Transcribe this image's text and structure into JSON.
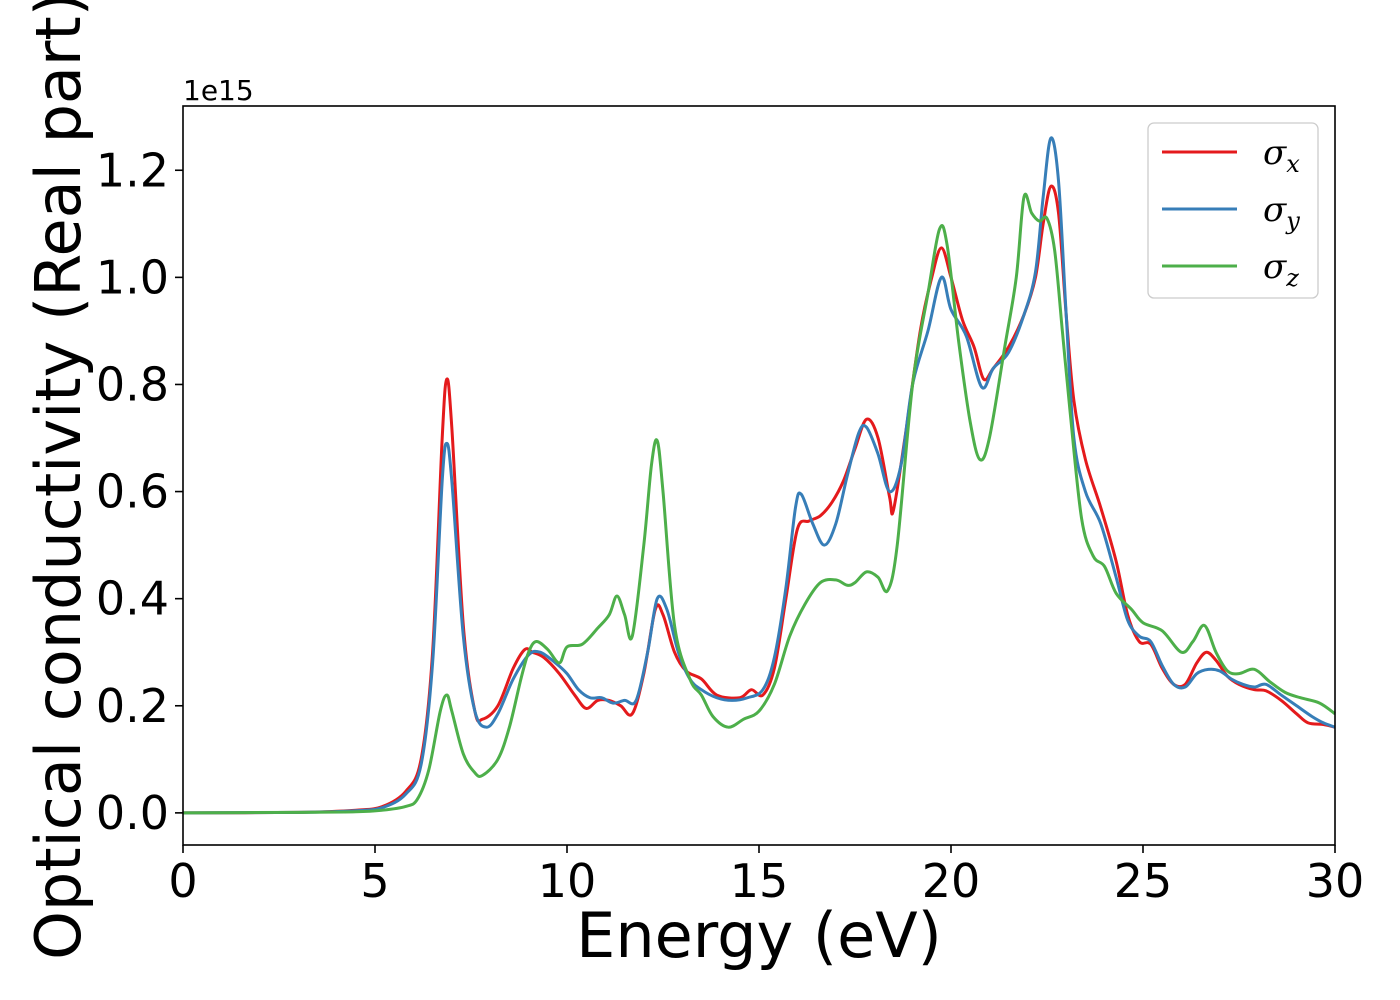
{
  "chart_data": {
    "type": "line",
    "xlabel": "Energy (eV)",
    "ylabel": "Optical conductivity (Real part)",
    "offset_text": "1e15",
    "xlim": [
      0,
      30
    ],
    "ylim": [
      -0.06,
      1.32
    ],
    "xticks": [
      0,
      5,
      10,
      15,
      20,
      25,
      30
    ],
    "xtick_labels": [
      "0",
      "5",
      "10",
      "15",
      "20",
      "25",
      "30"
    ],
    "yticks": [
      0.0,
      0.2,
      0.4,
      0.6,
      0.8,
      1.0,
      1.2
    ],
    "ytick_labels": [
      "0.0",
      "0.2",
      "0.4",
      "0.6",
      "0.8",
      "1.0",
      "1.2"
    ],
    "grid": false,
    "legend_position": "top-right",
    "series": [
      {
        "name": "σx",
        "legend_symbol": "σ",
        "legend_sub": "x",
        "color": "#e41a1c",
        "points": [
          [
            0,
            0
          ],
          [
            3,
            0.001
          ],
          [
            4.5,
            0.005
          ],
          [
            5.2,
            0.012
          ],
          [
            5.8,
            0.04
          ],
          [
            6.2,
            0.1
          ],
          [
            6.5,
            0.3
          ],
          [
            6.75,
            0.7
          ],
          [
            6.87,
            0.81
          ],
          [
            7.0,
            0.72
          ],
          [
            7.3,
            0.35
          ],
          [
            7.6,
            0.19
          ],
          [
            7.8,
            0.175
          ],
          [
            8.2,
            0.2
          ],
          [
            8.6,
            0.27
          ],
          [
            8.9,
            0.305
          ],
          [
            9.1,
            0.3
          ],
          [
            9.4,
            0.29
          ],
          [
            9.8,
            0.26
          ],
          [
            10.2,
            0.22
          ],
          [
            10.5,
            0.195
          ],
          [
            10.8,
            0.21
          ],
          [
            11.1,
            0.21
          ],
          [
            11.4,
            0.2
          ],
          [
            11.7,
            0.185
          ],
          [
            12.0,
            0.26
          ],
          [
            12.3,
            0.38
          ],
          [
            12.5,
            0.37
          ],
          [
            12.8,
            0.3
          ],
          [
            13.1,
            0.265
          ],
          [
            13.5,
            0.25
          ],
          [
            13.9,
            0.22
          ],
          [
            14.5,
            0.215
          ],
          [
            14.8,
            0.23
          ],
          [
            15.1,
            0.22
          ],
          [
            15.4,
            0.27
          ],
          [
            15.7,
            0.4
          ],
          [
            16.0,
            0.53
          ],
          [
            16.3,
            0.545
          ],
          [
            16.6,
            0.555
          ],
          [
            16.9,
            0.58
          ],
          [
            17.2,
            0.62
          ],
          [
            17.5,
            0.68
          ],
          [
            17.8,
            0.735
          ],
          [
            18.1,
            0.7
          ],
          [
            18.4,
            0.59
          ],
          [
            18.5,
            0.565
          ],
          [
            18.8,
            0.7
          ],
          [
            19.2,
            0.9
          ],
          [
            19.5,
            1.0
          ],
          [
            19.75,
            1.055
          ],
          [
            20.0,
            1.0
          ],
          [
            20.3,
            0.92
          ],
          [
            20.6,
            0.87
          ],
          [
            20.85,
            0.81
          ],
          [
            21.1,
            0.83
          ],
          [
            21.5,
            0.87
          ],
          [
            21.9,
            0.93
          ],
          [
            22.2,
            1.0
          ],
          [
            22.4,
            1.1
          ],
          [
            22.6,
            1.17
          ],
          [
            22.8,
            1.12
          ],
          [
            23.0,
            0.93
          ],
          [
            23.2,
            0.77
          ],
          [
            23.5,
            0.66
          ],
          [
            23.9,
            0.57
          ],
          [
            24.3,
            0.47
          ],
          [
            24.6,
            0.37
          ],
          [
            24.9,
            0.32
          ],
          [
            25.2,
            0.315
          ],
          [
            25.5,
            0.27
          ],
          [
            25.8,
            0.24
          ],
          [
            26.1,
            0.24
          ],
          [
            26.4,
            0.28
          ],
          [
            26.65,
            0.3
          ],
          [
            26.9,
            0.285
          ],
          [
            27.2,
            0.255
          ],
          [
            27.5,
            0.24
          ],
          [
            27.9,
            0.23
          ],
          [
            28.2,
            0.228
          ],
          [
            28.6,
            0.21
          ],
          [
            29.0,
            0.185
          ],
          [
            29.3,
            0.168
          ],
          [
            29.7,
            0.165
          ],
          [
            30.0,
            0.16
          ]
        ]
      },
      {
        "name": "σy",
        "legend_symbol": "σ",
        "legend_sub": "y",
        "color": "#377eb8",
        "points": [
          [
            0,
            0
          ],
          [
            3,
            0.001
          ],
          [
            4.5,
            0.004
          ],
          [
            5.2,
            0.01
          ],
          [
            5.8,
            0.035
          ],
          [
            6.2,
            0.09
          ],
          [
            6.5,
            0.28
          ],
          [
            6.75,
            0.62
          ],
          [
            6.87,
            0.69
          ],
          [
            7.0,
            0.62
          ],
          [
            7.3,
            0.33
          ],
          [
            7.6,
            0.19
          ],
          [
            7.9,
            0.16
          ],
          [
            8.2,
            0.185
          ],
          [
            8.6,
            0.25
          ],
          [
            9.0,
            0.295
          ],
          [
            9.3,
            0.3
          ],
          [
            9.7,
            0.28
          ],
          [
            10.0,
            0.26
          ],
          [
            10.3,
            0.23
          ],
          [
            10.6,
            0.215
          ],
          [
            10.9,
            0.215
          ],
          [
            11.2,
            0.205
          ],
          [
            11.5,
            0.21
          ],
          [
            11.8,
            0.21
          ],
          [
            12.1,
            0.3
          ],
          [
            12.35,
            0.4
          ],
          [
            12.6,
            0.38
          ],
          [
            12.9,
            0.3
          ],
          [
            13.2,
            0.25
          ],
          [
            13.5,
            0.23
          ],
          [
            13.9,
            0.215
          ],
          [
            14.3,
            0.21
          ],
          [
            14.7,
            0.215
          ],
          [
            15.1,
            0.23
          ],
          [
            15.4,
            0.29
          ],
          [
            15.7,
            0.42
          ],
          [
            15.95,
            0.57
          ],
          [
            16.1,
            0.595
          ],
          [
            16.4,
            0.54
          ],
          [
            16.7,
            0.5
          ],
          [
            17.0,
            0.54
          ],
          [
            17.3,
            0.63
          ],
          [
            17.6,
            0.71
          ],
          [
            17.8,
            0.72
          ],
          [
            18.1,
            0.67
          ],
          [
            18.4,
            0.6
          ],
          [
            18.7,
            0.65
          ],
          [
            19.0,
            0.8
          ],
          [
            19.4,
            0.9
          ],
          [
            19.75,
            1.0
          ],
          [
            20.0,
            0.94
          ],
          [
            20.4,
            0.89
          ],
          [
            20.8,
            0.795
          ],
          [
            21.1,
            0.83
          ],
          [
            21.5,
            0.86
          ],
          [
            21.9,
            0.93
          ],
          [
            22.2,
            1.01
          ],
          [
            22.4,
            1.15
          ],
          [
            22.6,
            1.26
          ],
          [
            22.8,
            1.18
          ],
          [
            23.0,
            0.93
          ],
          [
            23.2,
            0.7
          ],
          [
            23.5,
            0.6
          ],
          [
            23.9,
            0.54
          ],
          [
            24.3,
            0.44
          ],
          [
            24.6,
            0.36
          ],
          [
            24.9,
            0.33
          ],
          [
            25.2,
            0.32
          ],
          [
            25.5,
            0.275
          ],
          [
            25.8,
            0.24
          ],
          [
            26.1,
            0.235
          ],
          [
            26.4,
            0.26
          ],
          [
            26.7,
            0.268
          ],
          [
            27.0,
            0.265
          ],
          [
            27.3,
            0.25
          ],
          [
            27.6,
            0.24
          ],
          [
            27.9,
            0.235
          ],
          [
            28.2,
            0.24
          ],
          [
            28.6,
            0.22
          ],
          [
            29.0,
            0.2
          ],
          [
            29.4,
            0.18
          ],
          [
            29.7,
            0.168
          ],
          [
            30.0,
            0.16
          ]
        ]
      },
      {
        "name": "σz",
        "legend_symbol": "σ",
        "legend_sub": "z",
        "color": "#4daf4a",
        "points": [
          [
            0,
            0
          ],
          [
            3,
            0.001
          ],
          [
            4.5,
            0.002
          ],
          [
            5.2,
            0.005
          ],
          [
            5.8,
            0.012
          ],
          [
            6.1,
            0.025
          ],
          [
            6.4,
            0.08
          ],
          [
            6.7,
            0.19
          ],
          [
            6.87,
            0.22
          ],
          [
            7.0,
            0.19
          ],
          [
            7.3,
            0.11
          ],
          [
            7.6,
            0.075
          ],
          [
            7.8,
            0.07
          ],
          [
            8.2,
            0.1
          ],
          [
            8.5,
            0.16
          ],
          [
            8.8,
            0.25
          ],
          [
            9.0,
            0.3
          ],
          [
            9.2,
            0.32
          ],
          [
            9.5,
            0.305
          ],
          [
            9.8,
            0.28
          ],
          [
            10.0,
            0.31
          ],
          [
            10.4,
            0.315
          ],
          [
            10.8,
            0.345
          ],
          [
            11.1,
            0.37
          ],
          [
            11.3,
            0.405
          ],
          [
            11.5,
            0.37
          ],
          [
            11.7,
            0.33
          ],
          [
            12.0,
            0.5
          ],
          [
            12.2,
            0.65
          ],
          [
            12.35,
            0.695
          ],
          [
            12.5,
            0.6
          ],
          [
            12.8,
            0.35
          ],
          [
            13.2,
            0.25
          ],
          [
            13.5,
            0.22
          ],
          [
            13.8,
            0.18
          ],
          [
            14.2,
            0.16
          ],
          [
            14.6,
            0.175
          ],
          [
            15.0,
            0.19
          ],
          [
            15.4,
            0.24
          ],
          [
            15.8,
            0.33
          ],
          [
            16.2,
            0.39
          ],
          [
            16.6,
            0.43
          ],
          [
            17.0,
            0.435
          ],
          [
            17.3,
            0.425
          ],
          [
            17.5,
            0.43
          ],
          [
            17.8,
            0.45
          ],
          [
            18.1,
            0.44
          ],
          [
            18.35,
            0.415
          ],
          [
            18.6,
            0.5
          ],
          [
            19.0,
            0.8
          ],
          [
            19.4,
            0.97
          ],
          [
            19.7,
            1.09
          ],
          [
            19.9,
            1.06
          ],
          [
            20.2,
            0.88
          ],
          [
            20.5,
            0.73
          ],
          [
            20.75,
            0.66
          ],
          [
            21.0,
            0.7
          ],
          [
            21.4,
            0.87
          ],
          [
            21.7,
            1.0
          ],
          [
            21.9,
            1.15
          ],
          [
            22.1,
            1.12
          ],
          [
            22.3,
            1.105
          ],
          [
            22.5,
            1.11
          ],
          [
            22.7,
            1.05
          ],
          [
            22.9,
            0.9
          ],
          [
            23.1,
            0.75
          ],
          [
            23.4,
            0.55
          ],
          [
            23.7,
            0.48
          ],
          [
            24.0,
            0.46
          ],
          [
            24.3,
            0.41
          ],
          [
            24.7,
            0.38
          ],
          [
            25.0,
            0.355
          ],
          [
            25.5,
            0.34
          ],
          [
            26.0,
            0.3
          ],
          [
            26.3,
            0.32
          ],
          [
            26.6,
            0.35
          ],
          [
            26.9,
            0.3
          ],
          [
            27.2,
            0.265
          ],
          [
            27.5,
            0.26
          ],
          [
            27.9,
            0.268
          ],
          [
            28.3,
            0.245
          ],
          [
            28.7,
            0.225
          ],
          [
            29.1,
            0.215
          ],
          [
            29.6,
            0.205
          ],
          [
            30.0,
            0.185
          ]
        ]
      }
    ]
  }
}
